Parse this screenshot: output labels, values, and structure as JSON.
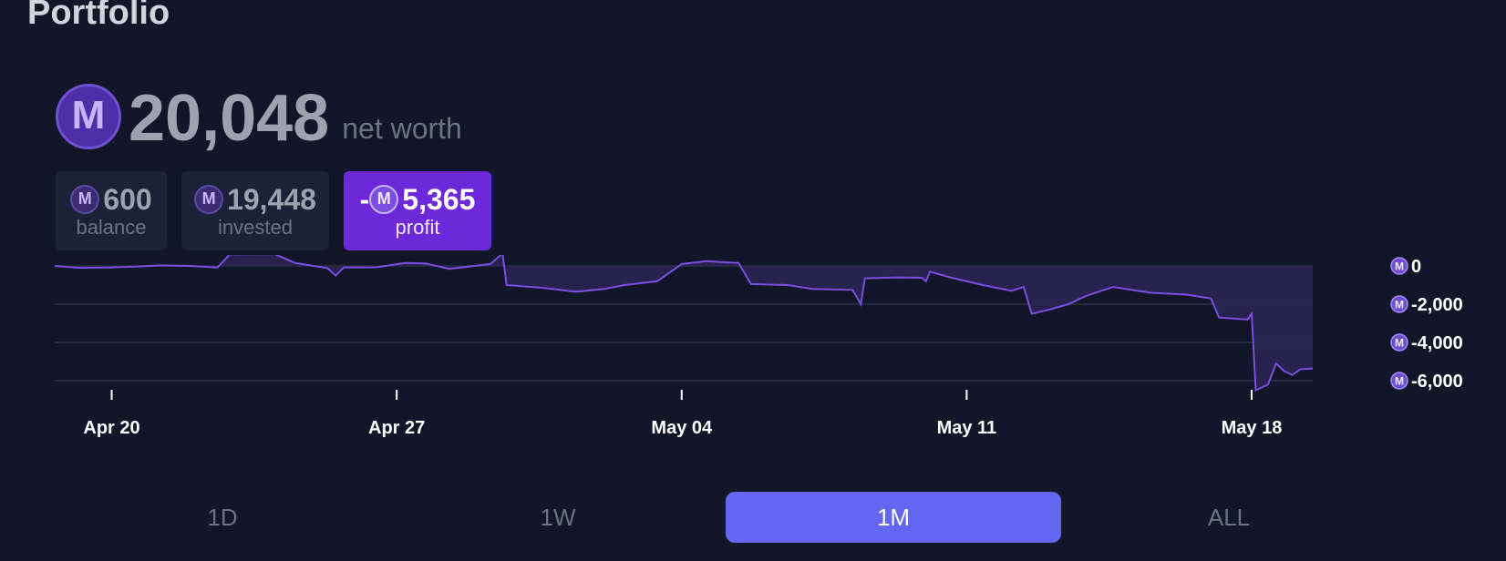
{
  "page": {
    "title": "Portfolio"
  },
  "currency_icon": "mana-coin-icon",
  "net_worth": {
    "value": "20,048",
    "label": "net worth"
  },
  "cards": {
    "balance": {
      "value": "600",
      "label": "balance"
    },
    "invested": {
      "value": "19,448",
      "label": "invested"
    },
    "profit": {
      "sign": "-",
      "value": "5,365",
      "label": "profit"
    }
  },
  "colors": {
    "line": "#7c4ddf",
    "fill": "#2a2452",
    "grid": "#2b3245",
    "active_range": "#6366f1",
    "profit_card": "#6d28d9"
  },
  "chart_data": {
    "type": "area",
    "title": "",
    "xlabel": "",
    "ylabel": "",
    "x_ticks": [
      "Apr 20",
      "Apr 27",
      "May 04",
      "May 11",
      "May 18"
    ],
    "y_ticks": [
      "0",
      "-2,000",
      "-4,000",
      "-6,000"
    ],
    "y_tick_values": [
      0,
      -2000,
      -4000,
      -6000
    ],
    "ylim": [
      -6600,
      700
    ],
    "xlim_days": [
      "Apr 18.6",
      "May 19.5"
    ],
    "grid": true,
    "series": [
      {
        "points": [
          [
            "Apr 18.6",
            0
          ],
          [
            "Apr 19.2",
            -100
          ],
          [
            "Apr 19.9",
            -80
          ],
          [
            "Apr 20.6",
            -40
          ],
          [
            "Apr 21.2",
            30
          ],
          [
            "Apr 21.9",
            0
          ],
          [
            "Apr 22.6",
            -80
          ],
          [
            "Apr 22.9",
            600
          ],
          [
            "Apr 24.0",
            620
          ],
          [
            "Apr 24.5",
            160
          ],
          [
            "Apr 25.3",
            -120
          ],
          [
            "Apr 25.5",
            -500
          ],
          [
            "Apr 25.7",
            -80
          ],
          [
            "Apr 26.5",
            -70
          ],
          [
            "Apr 27.2",
            150
          ],
          [
            "Apr 27.7",
            130
          ],
          [
            "Apr 28.3",
            -150
          ],
          [
            "Apr 28.9",
            0
          ],
          [
            "Apr 29.3",
            100
          ],
          [
            "Apr 29.6",
            650
          ],
          [
            "Apr 29.7",
            -1000
          ],
          [
            "Apr 30.6",
            -1150
          ],
          [
            "May 01.4",
            -1350
          ],
          [
            "May 02.1",
            -1200
          ],
          [
            "May 02.6",
            -1000
          ],
          [
            "May 03.4",
            -800
          ],
          [
            "May 04.0",
            100
          ],
          [
            "May 04.6",
            250
          ],
          [
            "May 05.4",
            150
          ],
          [
            "May 05.7",
            -950
          ],
          [
            "May 06.6",
            -1000
          ],
          [
            "May 07.2",
            -1200
          ],
          [
            "May 08.2",
            -1250
          ],
          [
            "May 08.4",
            -2000
          ],
          [
            "May 08.5",
            -650
          ],
          [
            "May 09.3",
            -600
          ],
          [
            "May 09.9",
            -620
          ],
          [
            "May 10.0",
            -800
          ],
          [
            "May 10.1",
            -300
          ],
          [
            "May 10.6",
            -600
          ],
          [
            "May 11.4",
            -1000
          ],
          [
            "May 12.1",
            -1300
          ],
          [
            "May 12.4",
            -1100
          ],
          [
            "May 12.6",
            -2500
          ],
          [
            "May 13.0",
            -2300
          ],
          [
            "May 13.5",
            -2000
          ],
          [
            "May 13.9",
            -1600
          ],
          [
            "May 14.3",
            -1300
          ],
          [
            "May 14.6",
            -1100
          ],
          [
            "May 15.5",
            -1400
          ],
          [
            "May 16.4",
            -1500
          ],
          [
            "May 17.0",
            -1700
          ],
          [
            "May 17.2",
            -2700
          ],
          [
            "May 17.9",
            -2800
          ],
          [
            "May 18.0",
            -2500
          ],
          [
            "May 18.1",
            -6500
          ],
          [
            "May 18.4",
            -6200
          ],
          [
            "May 18.6",
            -5100
          ],
          [
            "May 18.8",
            -5500
          ],
          [
            "May 19.0",
            -5700
          ],
          [
            "May 19.2",
            -5400
          ],
          [
            "May 19.5",
            -5365
          ]
        ]
      }
    ]
  },
  "ranges": [
    {
      "label": "1D",
      "active": false
    },
    {
      "label": "1W",
      "active": false
    },
    {
      "label": "1M",
      "active": true
    },
    {
      "label": "ALL",
      "active": false
    }
  ]
}
